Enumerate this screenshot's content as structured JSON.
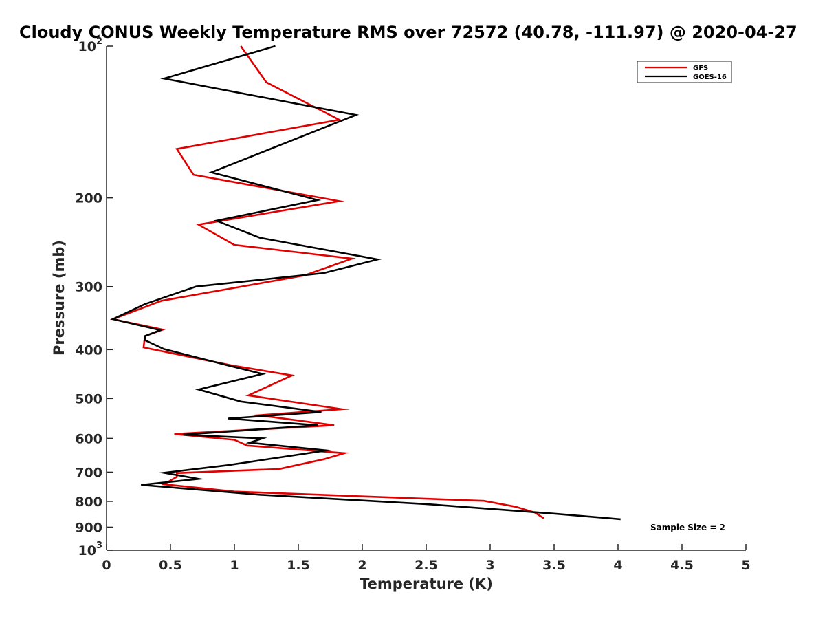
{
  "chart_data": {
    "type": "line",
    "title": "Cloudy CONUS Weekly Temperature RMS over 72572 (40.78, -111.97) @ 2020-04-27",
    "xlabel": "Temperature (K)",
    "ylabel": "Pressure (mb)",
    "xlim": [
      0,
      5
    ],
    "ylim": [
      100,
      1000
    ],
    "yscale": "log",
    "y_reversed": true,
    "x_ticks": [
      0,
      0.5,
      1,
      1.5,
      2,
      2.5,
      3,
      3.5,
      4,
      4.5,
      5
    ],
    "x_tick_labels": [
      "0",
      "0.5",
      "1",
      "1.5",
      "2",
      "2.5",
      "3",
      "3.5",
      "4",
      "4.5",
      "5"
    ],
    "y_ticks": [
      {
        "value": 100,
        "base": "10",
        "exp": "2"
      },
      {
        "value": 200,
        "label": "200"
      },
      {
        "value": 300,
        "label": "300"
      },
      {
        "value": 400,
        "label": "400"
      },
      {
        "value": 500,
        "label": "500"
      },
      {
        "value": 600,
        "label": "600"
      },
      {
        "value": 700,
        "label": "700"
      },
      {
        "value": 800,
        "label": "800"
      },
      {
        "value": 900,
        "label": "900"
      },
      {
        "value": 1000,
        "base": "10",
        "exp": "3"
      }
    ],
    "legend": {
      "position": "top-right",
      "entries": [
        "GFS",
        "GOES-16"
      ]
    },
    "annotation": "Sample Size = 2",
    "series": [
      {
        "name": "GFS",
        "color": "#e00000",
        "x": [
          1.05,
          1.25,
          1.82,
          0.55,
          0.68,
          1.82,
          0.72,
          1.0,
          1.92,
          1.55,
          0.43,
          0.05,
          0.44,
          0.3,
          0.29,
          0.98,
          1.45,
          1.11,
          1.84,
          1.19,
          1.78,
          0.53,
          1.0,
          1.1,
          1.86,
          1.7,
          1.35,
          0.55,
          0.55,
          0.45,
          1.0,
          2.95,
          3.2,
          3.35,
          3.42
        ],
        "y": [
          100,
          118,
          140,
          160,
          180,
          203,
          226,
          248,
          264,
          285,
          320,
          348,
          365,
          376,
          396,
          430,
          450,
          493,
          525,
          540,
          565,
          588,
          604,
          620,
          642,
          660,
          690,
          703,
          715,
          740,
          765,
          798,
          820,
          842,
          864
        ]
      },
      {
        "name": "GOES-16",
        "color": "#000000",
        "x": [
          1.32,
          0.45,
          1.95,
          0.82,
          1.65,
          0.86,
          1.2,
          2.12,
          1.7,
          0.7,
          0.3,
          0.05,
          0.42,
          0.3,
          0.3,
          0.45,
          0.95,
          1.22,
          0.72,
          1.05,
          1.68,
          0.95,
          1.65,
          0.6,
          1.22,
          1.12,
          1.72,
          0.95,
          0.45,
          0.72,
          0.27,
          1.2,
          2.5,
          3.5,
          4.02
        ],
        "y": [
          100,
          116,
          137,
          178,
          202,
          222,
          240,
          265,
          282,
          300,
          325,
          348,
          366,
          376,
          383,
          399,
          430,
          447,
          480,
          507,
          532,
          548,
          565,
          590,
          600,
          612,
          634,
          678,
          702,
          722,
          742,
          776,
          810,
          846,
          868
        ]
      }
    ]
  }
}
